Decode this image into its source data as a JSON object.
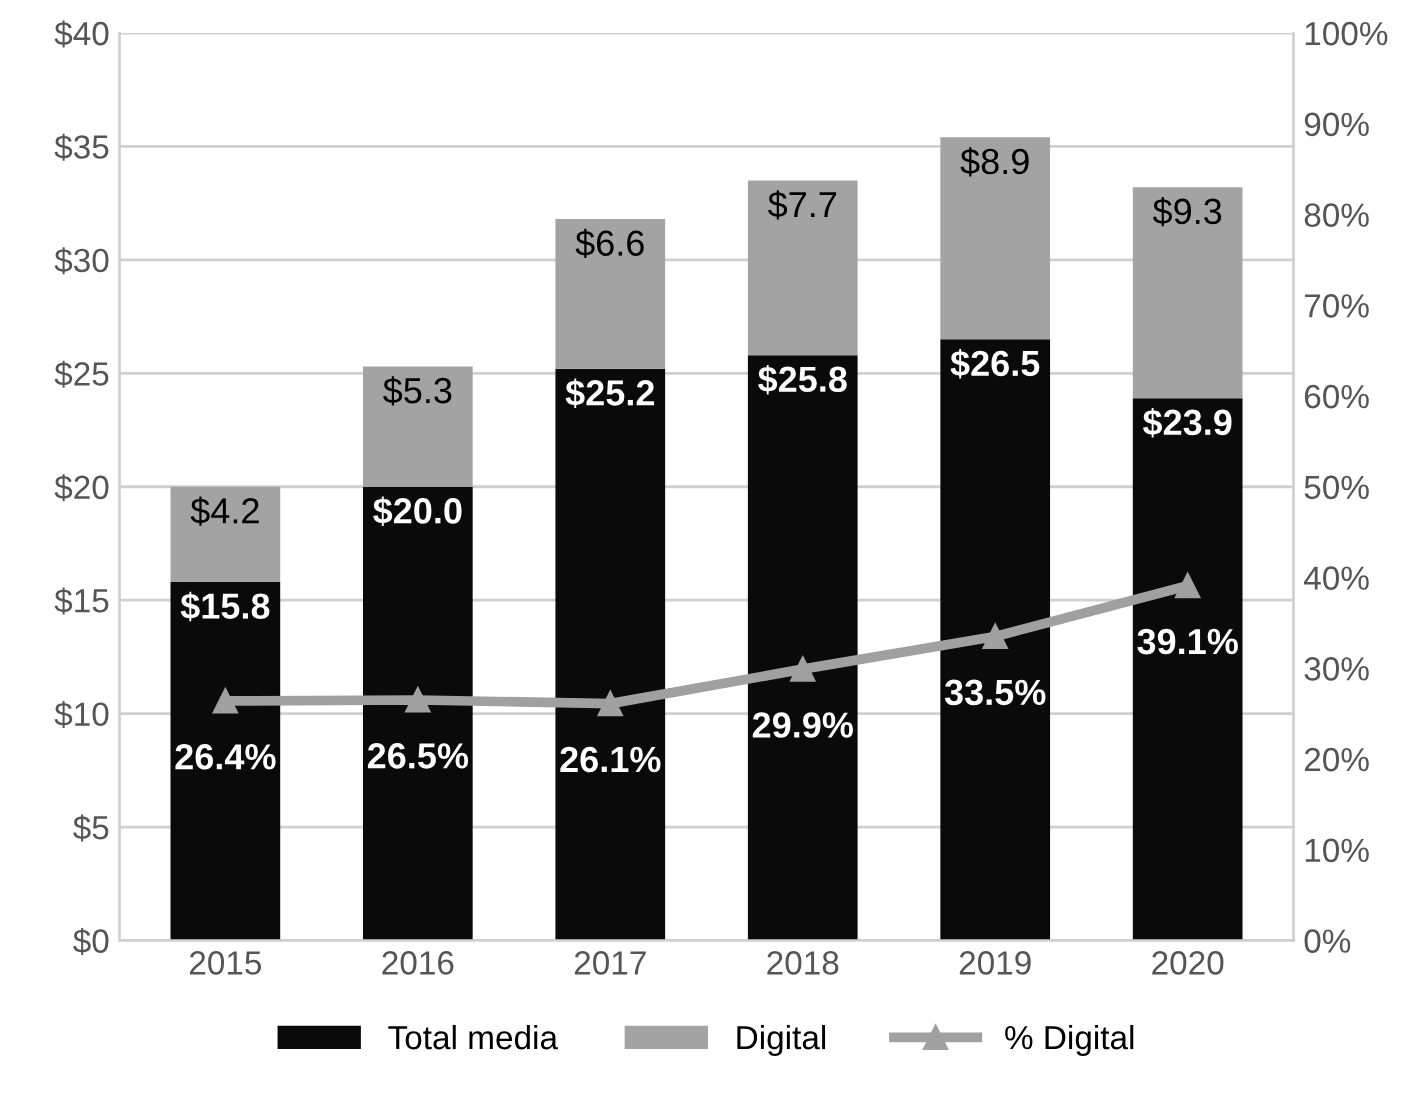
{
  "chart_data": {
    "type": "bar",
    "stacked": true,
    "categories": [
      "2015",
      "2016",
      "2017",
      "2018",
      "2019",
      "2020"
    ],
    "series": [
      {
        "name": "Total media",
        "color": "#0a0a0a",
        "values": [
          15.8,
          20.0,
          25.2,
          25.8,
          26.5,
          23.9
        ],
        "value_labels": [
          "$15.8",
          "$20.0",
          "$25.2",
          "$25.8",
          "$26.5",
          "$23.9"
        ]
      },
      {
        "name": "Digital",
        "color": "#a3a3a3",
        "values": [
          4.2,
          5.3,
          6.6,
          7.7,
          8.9,
          9.3
        ],
        "value_labels": [
          "$4.2",
          "$5.3",
          "$6.6",
          "$7.7",
          "$8.9",
          "$9.3"
        ]
      },
      {
        "name": "% Digital",
        "type": "line",
        "axis": "y2",
        "color": "#a0a0a0",
        "marker": "triangle",
        "values": [
          26.4,
          26.5,
          26.1,
          29.9,
          33.5,
          39.1
        ],
        "value_labels": [
          "26.4%",
          "26.5%",
          "26.1%",
          "29.9%",
          "33.5%",
          "39.1%"
        ]
      }
    ],
    "ylim": [
      0,
      40
    ],
    "yticks": [
      {
        "value": 0,
        "label": "$0"
      },
      {
        "value": 5,
        "label": "$5"
      },
      {
        "value": 10,
        "label": "$10"
      },
      {
        "value": 15,
        "label": "$15"
      },
      {
        "value": 20,
        "label": "$20"
      },
      {
        "value": 25,
        "label": "$25"
      },
      {
        "value": 30,
        "label": "$30"
      },
      {
        "value": 35,
        "label": "$35"
      },
      {
        "value": 40,
        "label": "$40"
      }
    ],
    "y2lim": [
      0,
      100
    ],
    "y2ticks": [
      {
        "value": 0,
        "label": "0%"
      },
      {
        "value": 10,
        "label": "10%"
      },
      {
        "value": 20,
        "label": "20%"
      },
      {
        "value": 30,
        "label": "30%"
      },
      {
        "value": 40,
        "label": "40%"
      },
      {
        "value": 50,
        "label": "50%"
      },
      {
        "value": 60,
        "label": "60%"
      },
      {
        "value": 70,
        "label": "70%"
      },
      {
        "value": 80,
        "label": "80%"
      },
      {
        "value": 90,
        "label": "90%"
      },
      {
        "value": 100,
        "label": "100%"
      }
    ],
    "grid": "y",
    "legend": "bottom"
  }
}
